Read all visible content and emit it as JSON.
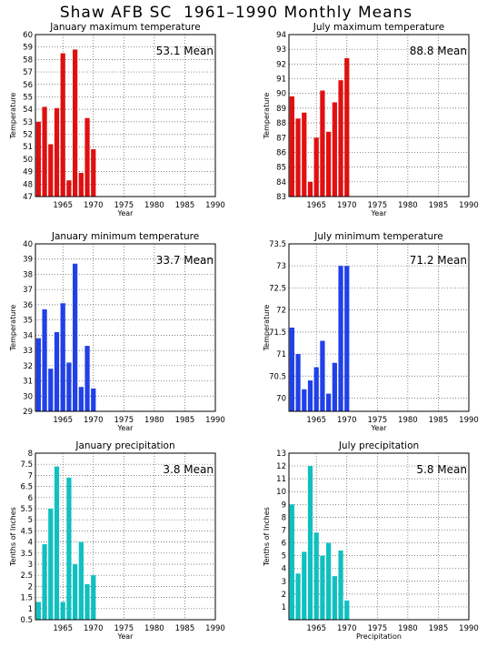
{
  "title": "Shaw AFB SC  1961–1990 Monthly Means",
  "colors": {
    "red": "#e01010",
    "blue": "#2040e8",
    "cyan": "#10c0c0",
    "grid": "#555555"
  },
  "chart_data": [
    {
      "type": "bar",
      "title": "January maximum temperature",
      "ylabel": "Temperature",
      "xlabel": "Year",
      "mean_label": "53.1  Mean",
      "color": "red",
      "xlim": [
        1960.5,
        1990
      ],
      "ylim": [
        47,
        60
      ],
      "xticks": [
        1965,
        1970,
        1975,
        1980,
        1985,
        1990
      ],
      "yticks": [
        47,
        48,
        49,
        50,
        51,
        52,
        53,
        54,
        55,
        56,
        57,
        58,
        59,
        60
      ],
      "x": [
        1961,
        1962,
        1963,
        1964,
        1965,
        1966,
        1967,
        1968,
        1969,
        1970
      ],
      "values": [
        53.0,
        54.2,
        51.2,
        54.1,
        58.5,
        48.3,
        58.8,
        48.9,
        53.3,
        50.8
      ]
    },
    {
      "type": "bar",
      "title": "July maximum temperature",
      "ylabel": "Temperature",
      "xlabel": "Year",
      "mean_label": "88.8  Mean",
      "color": "red",
      "xlim": [
        1960.5,
        1990
      ],
      "ylim": [
        83,
        94
      ],
      "xticks": [
        1965,
        1970,
        1975,
        1980,
        1985,
        1990
      ],
      "yticks": [
        83,
        84,
        85,
        86,
        87,
        88,
        89,
        90,
        91,
        92,
        93,
        94
      ],
      "x": [
        1961,
        1962,
        1963,
        1964,
        1965,
        1966,
        1967,
        1968,
        1969,
        1970
      ],
      "values": [
        89.8,
        88.3,
        88.7,
        84.0,
        87.0,
        90.2,
        87.4,
        89.4,
        90.9,
        92.4
      ]
    },
    {
      "type": "bar",
      "title": "January minimum temperature",
      "ylabel": "Temperature",
      "xlabel": "Year",
      "mean_label": "33.7  Mean",
      "color": "blue",
      "xlim": [
        1960.5,
        1990
      ],
      "ylim": [
        29,
        40
      ],
      "xticks": [
        1965,
        1970,
        1975,
        1980,
        1985,
        1990
      ],
      "yticks": [
        29,
        30,
        31,
        32,
        33,
        34,
        35,
        36,
        37,
        38,
        39,
        40
      ],
      "x": [
        1961,
        1962,
        1963,
        1964,
        1965,
        1966,
        1967,
        1968,
        1969,
        1970
      ],
      "values": [
        33.8,
        35.7,
        31.8,
        34.2,
        36.1,
        32.2,
        38.7,
        30.6,
        33.3,
        30.5
      ]
    },
    {
      "type": "bar",
      "title": "July minimum temperature",
      "ylabel": "Temperature",
      "xlabel": "Year",
      "mean_label": "71.2  Mean",
      "color": "blue",
      "xlim": [
        1960.5,
        1990
      ],
      "ylim": [
        69.7,
        73.5
      ],
      "xticks": [
        1965,
        1970,
        1975,
        1980,
        1985,
        1990
      ],
      "yticks": [
        70,
        70.5,
        71,
        71.5,
        72,
        72.5,
        73,
        73.5
      ],
      "x": [
        1961,
        1962,
        1963,
        1964,
        1965,
        1966,
        1967,
        1968,
        1969,
        1970
      ],
      "values": [
        71.6,
        71.0,
        70.2,
        70.4,
        70.7,
        71.3,
        70.1,
        70.8,
        73.0,
        73.0
      ]
    },
    {
      "type": "bar",
      "title": "January precipitation",
      "ylabel": "Tenths of Inches",
      "xlabel": "Year",
      "mean_label": "3.8  Mean",
      "color": "cyan",
      "xlim": [
        1960.5,
        1990
      ],
      "ylim": [
        0.5,
        8
      ],
      "xticks": [
        1965,
        1970,
        1975,
        1980,
        1985,
        1990
      ],
      "yticks": [
        0.5,
        1,
        1.5,
        2,
        2.5,
        3,
        3.5,
        4,
        4.5,
        5,
        5.5,
        6,
        6.5,
        7,
        7.5,
        8
      ],
      "x": [
        1961,
        1962,
        1963,
        1964,
        1965,
        1966,
        1967,
        1968,
        1969,
        1970
      ],
      "values": [
        1.3,
        3.9,
        5.5,
        7.4,
        1.3,
        6.9,
        3.0,
        4.0,
        2.1,
        2.5
      ]
    },
    {
      "type": "bar",
      "title": "July precipitation",
      "ylabel": "Tenths of Inches",
      "xlabel": "Precipitation",
      "mean_label": "5.8  Mean",
      "color": "cyan",
      "xlim": [
        1960.5,
        1990
      ],
      "ylim": [
        0,
        13
      ],
      "xticks": [
        1965,
        1970,
        1975,
        1980,
        1985,
        1990
      ],
      "yticks": [
        1,
        2,
        3,
        4,
        5,
        6,
        7,
        8,
        9,
        10,
        11,
        12,
        13
      ],
      "x": [
        1961,
        1962,
        1963,
        1964,
        1965,
        1966,
        1967,
        1968,
        1969,
        1970
      ],
      "values": [
        9.0,
        3.6,
        5.3,
        12.0,
        6.8,
        5.0,
        6.0,
        3.4,
        5.4,
        1.5
      ]
    }
  ]
}
